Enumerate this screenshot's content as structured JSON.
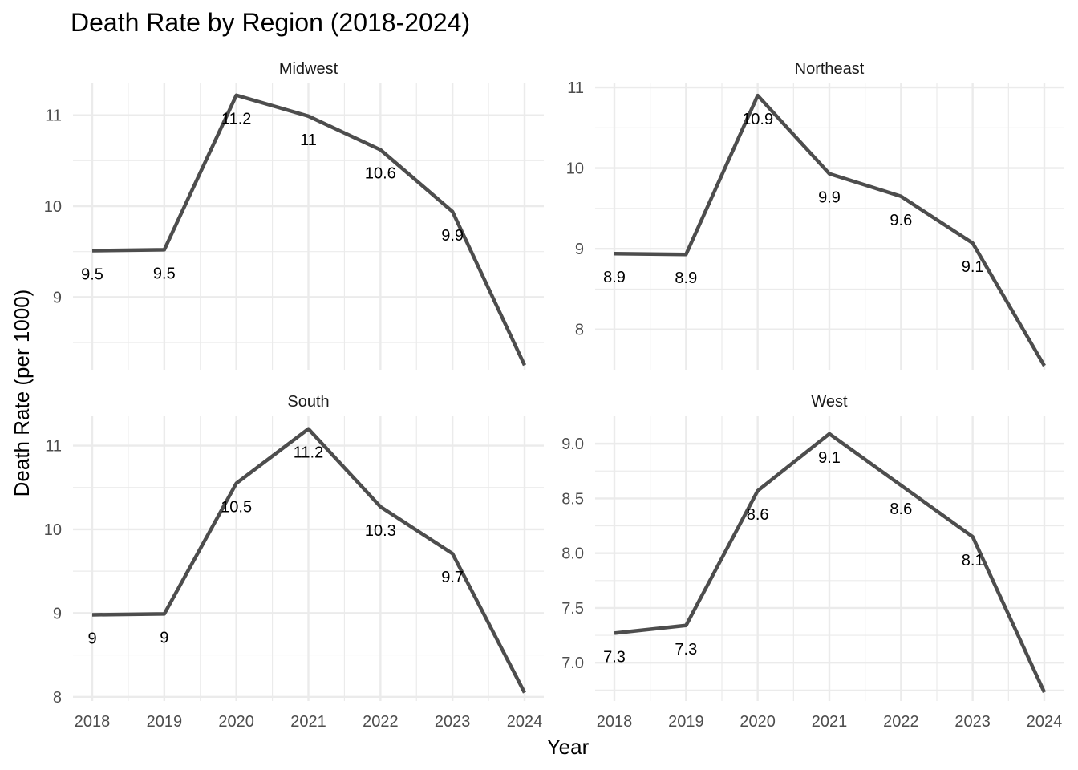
{
  "chart_data": {
    "type": "line",
    "title": "Death Rate by Region (2018-2024)",
    "xlabel": "Year",
    "ylabel": "Death Rate (per 1000)",
    "x": [
      2018,
      2019,
      2020,
      2021,
      2022,
      2023,
      2024
    ],
    "x_tick_labels": [
      "2018",
      "2019",
      "2020",
      "2021",
      "2022",
      "2023",
      "2024"
    ],
    "grid": true,
    "legend": "none",
    "line_color": "#4d4d4d",
    "panels": [
      {
        "name": "Midwest",
        "values": [
          9.51,
          9.52,
          11.22,
          10.99,
          10.62,
          9.94,
          8.25
        ],
        "labels": [
          "9.5",
          "9.5",
          "11.2",
          "11",
          "10.6",
          "9.9",
          ""
        ],
        "ylim": [
          8.2,
          11.35
        ],
        "y_ticks": [
          9,
          10,
          11
        ],
        "y_tick_labels": [
          "9",
          "10",
          "11"
        ]
      },
      {
        "name": "Northeast",
        "values": [
          8.94,
          8.93,
          10.9,
          9.93,
          9.65,
          9.07,
          7.55
        ],
        "labels": [
          "8.9",
          "8.9",
          "10.9",
          "9.9",
          "9.6",
          "9.1",
          ""
        ],
        "ylim": [
          7.5,
          11.05
        ],
        "y_ticks": [
          8,
          9,
          10,
          11
        ],
        "y_tick_labels": [
          "8",
          "9",
          "10",
          "11"
        ]
      },
      {
        "name": "South",
        "values": [
          8.98,
          8.99,
          10.55,
          11.2,
          10.27,
          9.71,
          8.05
        ],
        "labels": [
          "9",
          "9",
          "10.5",
          "11.2",
          "10.3",
          "9.7",
          ""
        ],
        "ylim": [
          7.95,
          11.35
        ],
        "y_ticks": [
          8,
          9,
          10,
          11
        ],
        "y_tick_labels": [
          "8",
          "9",
          "10",
          "11"
        ]
      },
      {
        "name": "West",
        "values": [
          7.27,
          7.34,
          8.57,
          9.09,
          8.62,
          8.15,
          6.73
        ],
        "labels": [
          "7.3",
          "7.3",
          "8.6",
          "9.1",
          "8.6",
          "8.1",
          ""
        ],
        "ylim": [
          6.65,
          9.25
        ],
        "y_ticks": [
          7.0,
          7.5,
          8.0,
          8.5,
          9.0
        ],
        "y_tick_labels": [
          "7.0",
          "7.5",
          "8.0",
          "8.5",
          "9.0"
        ]
      }
    ]
  }
}
